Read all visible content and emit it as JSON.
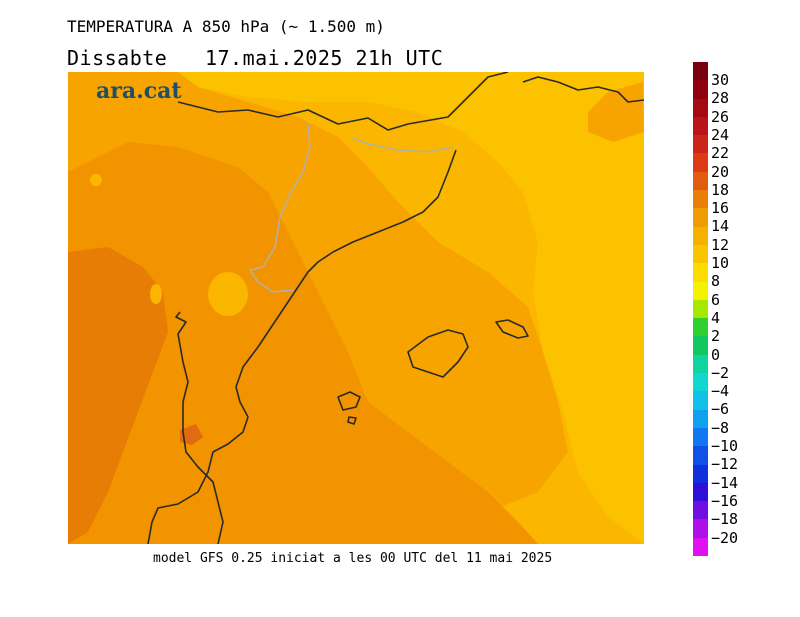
{
  "header": {
    "title": "TEMPERATURA A 850 hPa (~ 1.500 m)",
    "subtitle": "Dissabte   17.mai.2025 21h UTC"
  },
  "brand": {
    "logo_text": "ara.cat"
  },
  "footer": {
    "model_info": "model GFS 0.25 iniciat a les 00 UTC del 11 mai 2025"
  },
  "map": {
    "region": "Catalunya / Illes Balears",
    "colors": {
      "t8_10": "#fcc200",
      "t10_12": "#fbb600",
      "t12_14": "#f7a400",
      "t14_16": "#f29300",
      "t16_18": "#e77d05",
      "t18_20": "#e06b10",
      "coastline": "#2a2a2a",
      "border": "#b0b0b0"
    }
  },
  "legend": {
    "labels": [
      "30",
      "28",
      "26",
      "24",
      "22",
      "20",
      "18",
      "16",
      "14",
      "12",
      "10",
      "8",
      "6",
      "4",
      "2",
      "0",
      "−2",
      "−4",
      "−6",
      "−8",
      "−10",
      "−12",
      "−14",
      "−16",
      "−18",
      "−20"
    ],
    "segments": [
      "#7a0010",
      "#8e0010",
      "#a50a14",
      "#b8141a",
      "#cc2418",
      "#db3a14",
      "#e35b0e",
      "#e97e08",
      "#f19c03",
      "#f6b100",
      "#fac500",
      "#fcdc00",
      "#f5f200",
      "#a8e800",
      "#30d030",
      "#10c860",
      "#10d4a0",
      "#10d8d0",
      "#10c0e8",
      "#10a0f0",
      "#1078f0",
      "#1050e8",
      "#1030e0",
      "#3010d8",
      "#7010e0",
      "#b010e8",
      "#e010f0"
    ]
  }
}
